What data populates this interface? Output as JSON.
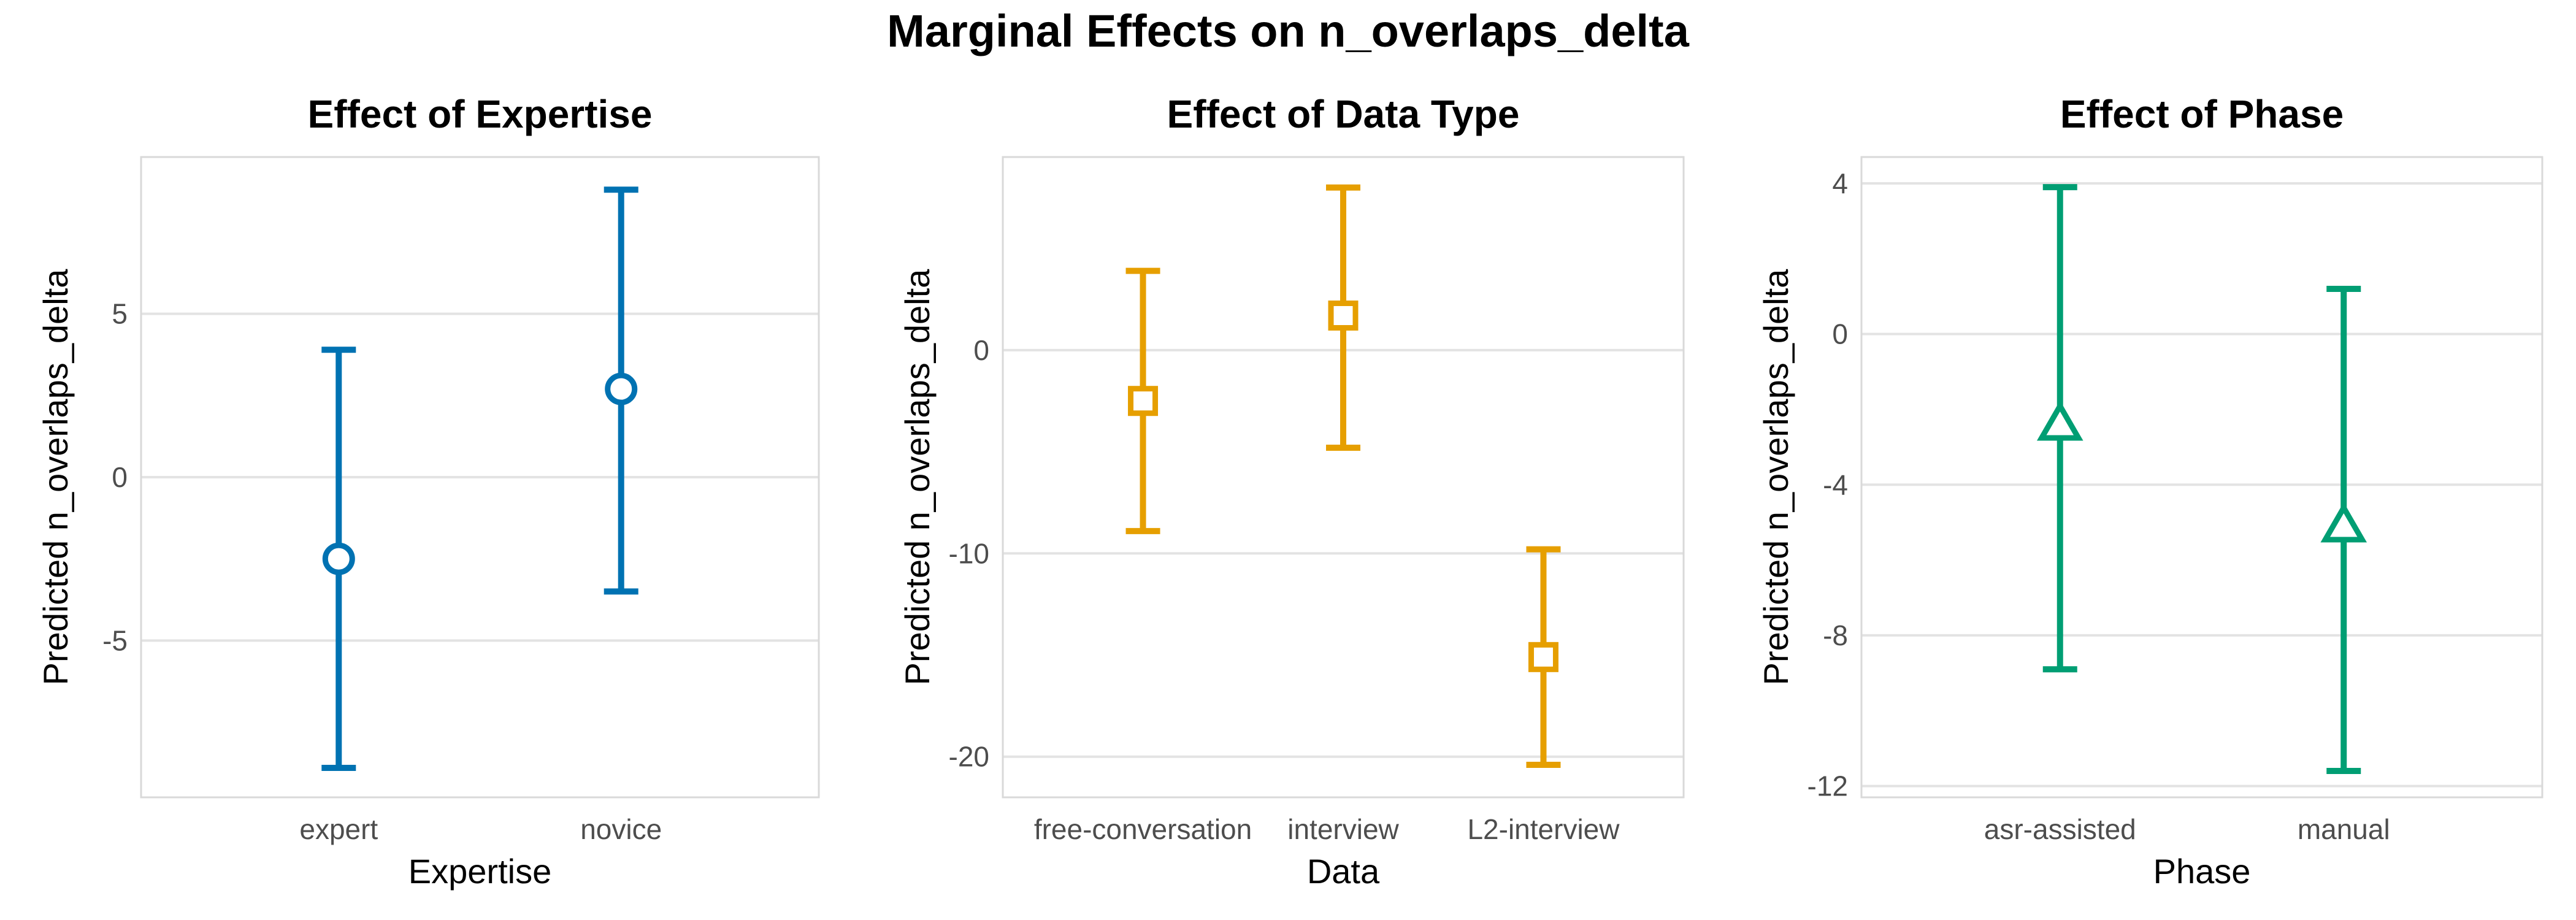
{
  "figure": {
    "title": "Marginal Effects on n_overlaps_delta"
  },
  "chart_data": [
    {
      "type": "errorbar",
      "title": "Effect of Expertise",
      "xlabel": "Expertise",
      "ylabel": "Predicted n_overlaps_delta",
      "categories": [
        "expert",
        "novice"
      ],
      "values": [
        -2.5,
        2.7
      ],
      "lower": [
        -8.9,
        -3.5
      ],
      "upper": [
        3.9,
        8.8
      ],
      "ylim": [
        -9.8,
        9.8
      ],
      "yticks": [
        -5,
        0,
        5
      ],
      "yticklabels": [
        "-5",
        "0",
        "5"
      ],
      "marker": "circle",
      "color": "#0072B2",
      "grid": true
    },
    {
      "type": "errorbar",
      "title": "Effect of Data Type",
      "xlabel": "Data",
      "ylabel": "Predicted n_overlaps_delta",
      "categories": [
        "free-conversation",
        "interview",
        "L2-interview"
      ],
      "values": [
        -2.5,
        1.7,
        -15.1
      ],
      "lower": [
        -8.9,
        -4.8,
        -20.4
      ],
      "upper": [
        3.9,
        8.0,
        -9.8
      ],
      "ylim": [
        -22.0,
        9.5
      ],
      "yticks": [
        -20,
        -10,
        0
      ],
      "yticklabels": [
        "-20",
        "-10",
        "0"
      ],
      "marker": "square",
      "color": "#E69F00",
      "grid": true
    },
    {
      "type": "errorbar",
      "title": "Effect of Phase",
      "xlabel": "Phase",
      "ylabel": "Predicted n_overlaps_delta",
      "categories": [
        "asr-assisted",
        "manual"
      ],
      "values": [
        -2.4,
        -5.1
      ],
      "lower": [
        -8.9,
        -11.6
      ],
      "upper": [
        3.9,
        1.2
      ],
      "ylim": [
        -12.3,
        4.7
      ],
      "yticks": [
        -12,
        -8,
        -4,
        0,
        4
      ],
      "yticklabels": [
        "-12",
        "-8",
        "-4",
        "0",
        "4"
      ],
      "marker": "triangle",
      "color": "#009E73",
      "grid": true
    }
  ]
}
